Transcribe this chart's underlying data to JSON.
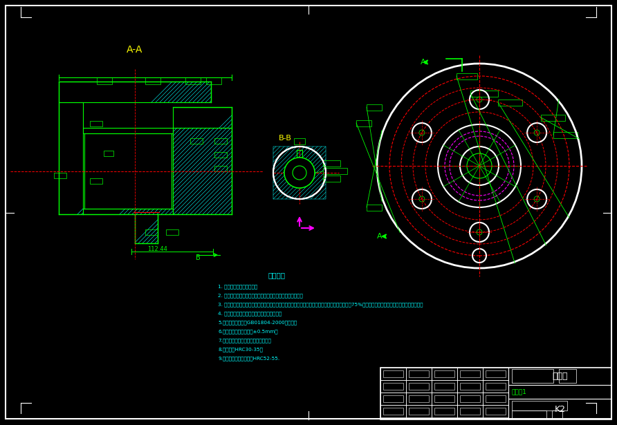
{
  "bg_color": "#000000",
  "green": "#00ff00",
  "cyan": "#00ffff",
  "yellow": "#ffff00",
  "white": "#ffffff",
  "red": "#ff0000",
  "magenta": "#ff00ff",
  "tech_title": "技术要求",
  "tech_lines": [
    "1. 零件采用锻造工艺成型；",
    "2. 零件急合处接触面积上应灵活，必须定键件有充分的润滑；",
    "3. 零件不允许有划痕、毛刺现象，不重要表面做防锈水喷漆处理；零件形位允差如超出加工公差的75%，零件本工序上该机机组须填写不合格单据；",
    "4. 零件不允许有毛刺、有棱锐处须倒角处理；",
    "5.未注形位公差遵循GB01804-2000的要求；",
    "6.未注长度几何公差精度±0.5mm；",
    "7.加工后锻件不允许自然弯曲，失直；",
    "8.热处理到HRC30-35。",
    "9.有密封面和配合处材料HRC52-55."
  ],
  "title_name": "制动毂",
  "drawing_no": "K2",
  "scale_text": "数量：1",
  "view_aa": "A-A",
  "view_bb": "B-B"
}
